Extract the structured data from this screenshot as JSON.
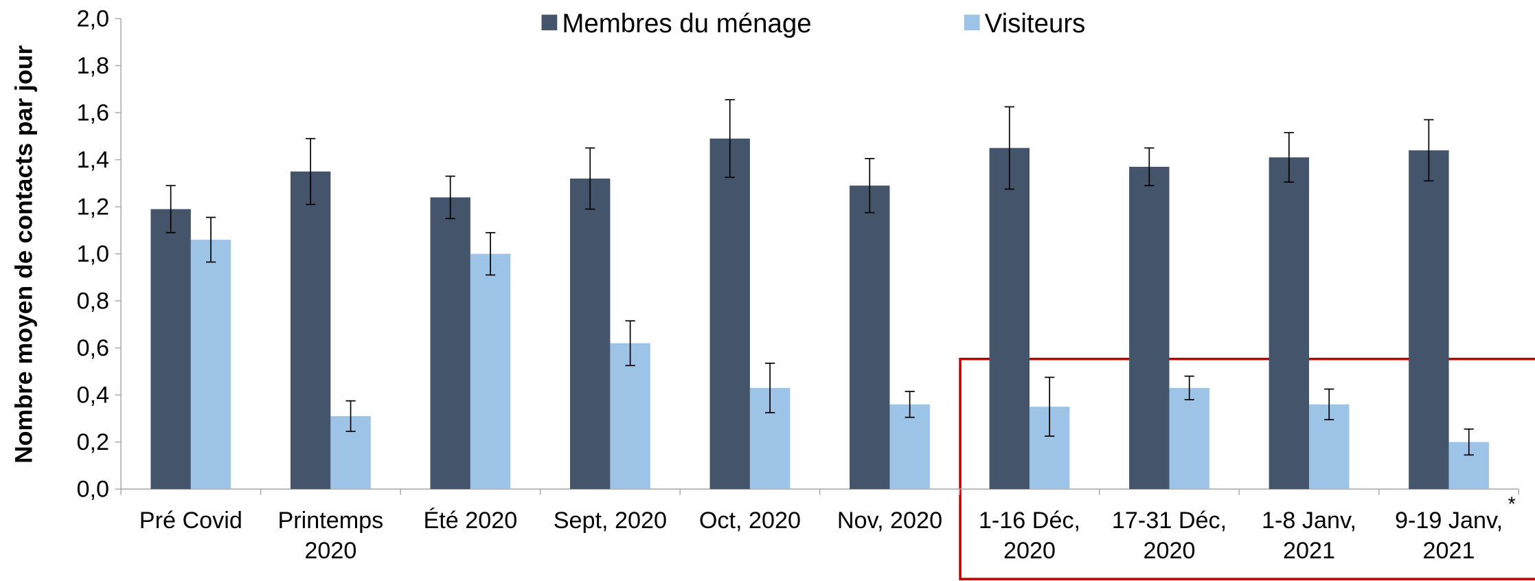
{
  "chart_data": {
    "type": "bar",
    "y_label": "Nombre moyen de contacts par jour",
    "categories": [
      [
        "Pré Covid"
      ],
      [
        "Printemps",
        "2020"
      ],
      [
        "Été 2020"
      ],
      [
        "Sept, 2020"
      ],
      [
        "Oct, 2020"
      ],
      [
        "Nov, 2020"
      ],
      [
        "1-16 Déc,",
        "2020"
      ],
      [
        "17-31 Déc,",
        "2020"
      ],
      [
        "1-8 Janv,",
        "2021"
      ],
      [
        "9-19 Janv,",
        "2021"
      ]
    ],
    "series": [
      {
        "name": "Membres du ménage",
        "color": "#44546a",
        "values": [
          1.19,
          1.35,
          1.24,
          1.32,
          1.49,
          1.29,
          1.45,
          1.37,
          1.41,
          1.44
        ],
        "errors": [
          0.1,
          0.14,
          0.09,
          0.13,
          0.165,
          0.115,
          0.175,
          0.08,
          0.105,
          0.13
        ]
      },
      {
        "name": "Visiteurs",
        "color": "#9dc3e6",
        "values": [
          1.06,
          0.31,
          1.0,
          0.62,
          0.43,
          0.36,
          0.35,
          0.43,
          0.36,
          0.2
        ],
        "errors": [
          0.095,
          0.065,
          0.09,
          0.095,
          0.105,
          0.055,
          0.125,
          0.05,
          0.065,
          0.055
        ]
      }
    ],
    "ylim": [
      0,
      2
    ],
    "yticks": [
      {
        "value": 0,
        "label": "0,0"
      },
      {
        "value": 0.2,
        "label": "0,2"
      },
      {
        "value": 0.4,
        "label": "0,4"
      },
      {
        "value": 0.6,
        "label": "0,6"
      },
      {
        "value": 0.8,
        "label": "0,8"
      },
      {
        "value": 1,
        "label": "1,0"
      },
      {
        "value": 1.2,
        "label": "1,2"
      },
      {
        "value": 1.4,
        "label": "1,4"
      },
      {
        "value": 1.6,
        "label": "1,6"
      },
      {
        "value": 1.8,
        "label": "1,8"
      },
      {
        "value": 2,
        "label": "2,0"
      }
    ],
    "annotation": "*",
    "annotation_color": "#e00000",
    "legend": "top"
  }
}
